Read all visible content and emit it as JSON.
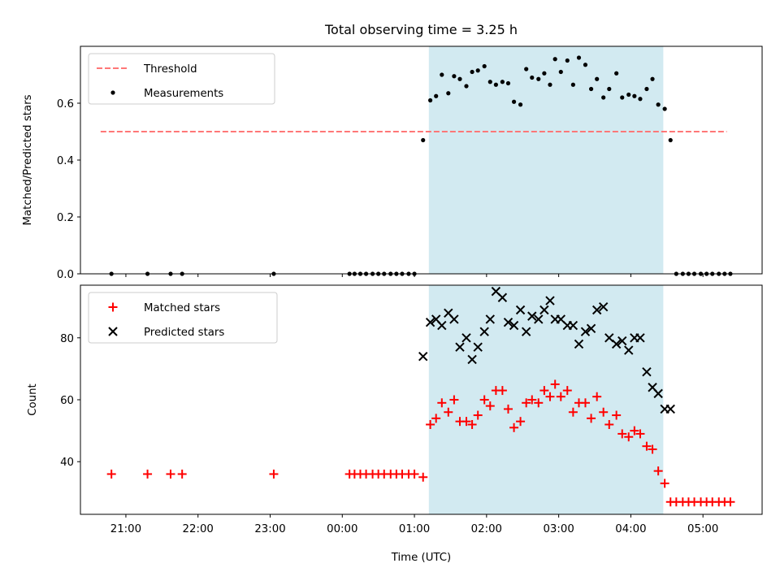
{
  "chart_data": [
    {
      "type": "scatter",
      "title": "Total observing time = 3.25 h",
      "xlabel": "",
      "ylabel": "Matched/Predicted stars",
      "ylim": [
        0,
        0.8
      ],
      "y_ticks": [
        "0.0",
        "0.2",
        "0.4",
        "0.6"
      ],
      "y_tick_values": [
        0,
        0.2,
        0.4,
        0.6
      ],
      "x_unit": "hours since 00:00 UTC (negative = previous day)",
      "xlim": [
        -3.63,
        5.82
      ],
      "shaded_interval": {
        "start": 1.2,
        "end": 4.45,
        "color": "#add8e6"
      },
      "legend": {
        "placement": "top-left",
        "entries": [
          "Threshold",
          "Measurements"
        ]
      },
      "threshold": {
        "name": "Threshold",
        "value": 0.5,
        "x_range": [
          -3.35,
          5.33
        ],
        "color": "#ff7777",
        "style": "dashed"
      },
      "series": [
        {
          "name": "Measurements",
          "color": "#000000",
          "marker": "dot",
          "points": [
            [
              -3.2,
              0
            ],
            [
              -2.7,
              0
            ],
            [
              -2.38,
              0
            ],
            [
              -2.22,
              0
            ],
            [
              -0.95,
              0
            ],
            [
              0.1,
              0
            ],
            [
              0.17,
              0
            ],
            [
              0.25,
              0
            ],
            [
              0.33,
              0
            ],
            [
              0.42,
              0
            ],
            [
              0.5,
              0
            ],
            [
              0.58,
              0
            ],
            [
              0.67,
              0
            ],
            [
              0.75,
              0
            ],
            [
              0.83,
              0
            ],
            [
              0.92,
              0
            ],
            [
              1.0,
              0
            ],
            [
              1.12,
              0.47
            ],
            [
              1.22,
              0.61
            ],
            [
              1.3,
              0.625
            ],
            [
              1.38,
              0.7
            ],
            [
              1.47,
              0.635
            ],
            [
              1.55,
              0.695
            ],
            [
              1.63,
              0.685
            ],
            [
              1.72,
              0.66
            ],
            [
              1.8,
              0.71
            ],
            [
              1.88,
              0.715
            ],
            [
              1.97,
              0.73
            ],
            [
              2.05,
              0.675
            ],
            [
              2.13,
              0.665
            ],
            [
              2.22,
              0.675
            ],
            [
              2.3,
              0.67
            ],
            [
              2.38,
              0.605
            ],
            [
              2.47,
              0.595
            ],
            [
              2.55,
              0.72
            ],
            [
              2.63,
              0.69
            ],
            [
              2.72,
              0.685
            ],
            [
              2.8,
              0.705
            ],
            [
              2.88,
              0.665
            ],
            [
              2.95,
              0.755
            ],
            [
              3.03,
              0.71
            ],
            [
              3.12,
              0.75
            ],
            [
              3.2,
              0.665
            ],
            [
              3.28,
              0.76
            ],
            [
              3.37,
              0.735
            ],
            [
              3.45,
              0.65
            ],
            [
              3.53,
              0.685
            ],
            [
              3.62,
              0.62
            ],
            [
              3.7,
              0.65
            ],
            [
              3.8,
              0.705
            ],
            [
              3.88,
              0.62
            ],
            [
              3.97,
              0.63
            ],
            [
              4.05,
              0.625
            ],
            [
              4.13,
              0.615
            ],
            [
              4.22,
              0.65
            ],
            [
              4.3,
              0.685
            ],
            [
              4.38,
              0.595
            ],
            [
              4.47,
              0.58
            ],
            [
              4.55,
              0.47
            ],
            [
              4.63,
              0
            ],
            [
              4.72,
              0
            ],
            [
              4.8,
              0
            ],
            [
              4.88,
              0
            ],
            [
              4.97,
              0
            ],
            [
              5.05,
              0
            ],
            [
              5.13,
              0
            ],
            [
              5.22,
              0
            ],
            [
              5.3,
              0
            ],
            [
              5.38,
              0
            ]
          ]
        }
      ]
    },
    {
      "type": "scatter",
      "title": "",
      "xlabel": "Time (UTC)",
      "ylabel": "Count",
      "ylim": [
        23,
        97
      ],
      "y_ticks": [
        "40",
        "60",
        "80"
      ],
      "y_tick_values": [
        40,
        60,
        80
      ],
      "x_ticks": [
        "21:00",
        "22:00",
        "23:00",
        "00:00",
        "01:00",
        "02:00",
        "03:00",
        "04:00",
        "05:00"
      ],
      "x_tick_values": [
        -3,
        -2,
        -1,
        0,
        1,
        2,
        3,
        4,
        5
      ],
      "x_unit": "hours since 00:00 UTC (negative = previous day)",
      "xlim": [
        -3.63,
        5.82
      ],
      "shaded_interval": {
        "start": 1.2,
        "end": 4.45,
        "color": "#add8e6"
      },
      "legend": {
        "placement": "top-left",
        "entries": [
          "Matched stars",
          "Predicted stars"
        ]
      },
      "series": [
        {
          "name": "Matched stars",
          "color": "#ff0000",
          "marker": "plus",
          "points": [
            [
              -3.2,
              36
            ],
            [
              -2.7,
              36
            ],
            [
              -2.38,
              36
            ],
            [
              -2.22,
              36
            ],
            [
              -0.95,
              36
            ],
            [
              0.1,
              36
            ],
            [
              0.17,
              36
            ],
            [
              0.25,
              36
            ],
            [
              0.33,
              36
            ],
            [
              0.42,
              36
            ],
            [
              0.5,
              36
            ],
            [
              0.58,
              36
            ],
            [
              0.67,
              36
            ],
            [
              0.75,
              36
            ],
            [
              0.83,
              36
            ],
            [
              0.92,
              36
            ],
            [
              1.0,
              36
            ],
            [
              1.12,
              35
            ],
            [
              1.22,
              52
            ],
            [
              1.3,
              54
            ],
            [
              1.38,
              59
            ],
            [
              1.47,
              56
            ],
            [
              1.55,
              60
            ],
            [
              1.63,
              53
            ],
            [
              1.72,
              53
            ],
            [
              1.8,
              52
            ],
            [
              1.88,
              55
            ],
            [
              1.97,
              60
            ],
            [
              2.05,
              58
            ],
            [
              2.13,
              63
            ],
            [
              2.22,
              63
            ],
            [
              2.3,
              57
            ],
            [
              2.38,
              51
            ],
            [
              2.47,
              53
            ],
            [
              2.55,
              59
            ],
            [
              2.63,
              60
            ],
            [
              2.72,
              59
            ],
            [
              2.8,
              63
            ],
            [
              2.88,
              61
            ],
            [
              2.95,
              65
            ],
            [
              3.03,
              61
            ],
            [
              3.12,
              63
            ],
            [
              3.2,
              56
            ],
            [
              3.28,
              59
            ],
            [
              3.37,
              59
            ],
            [
              3.45,
              54
            ],
            [
              3.53,
              61
            ],
            [
              3.62,
              56
            ],
            [
              3.7,
              52
            ],
            [
              3.8,
              55
            ],
            [
              3.88,
              49
            ],
            [
              3.97,
              48
            ],
            [
              4.05,
              50
            ],
            [
              4.13,
              49
            ],
            [
              4.22,
              45
            ],
            [
              4.3,
              44
            ],
            [
              4.38,
              37
            ],
            [
              4.47,
              33
            ],
            [
              4.55,
              27
            ],
            [
              4.63,
              27
            ],
            [
              4.72,
              27
            ],
            [
              4.8,
              27
            ],
            [
              4.88,
              27
            ],
            [
              4.97,
              27
            ],
            [
              5.05,
              27
            ],
            [
              5.13,
              27
            ],
            [
              5.22,
              27
            ],
            [
              5.3,
              27
            ],
            [
              5.38,
              27
            ]
          ]
        },
        {
          "name": "Predicted stars",
          "color": "#000000",
          "marker": "x",
          "points": [
            [
              1.12,
              74
            ],
            [
              1.22,
              85
            ],
            [
              1.3,
              86
            ],
            [
              1.38,
              84
            ],
            [
              1.47,
              88
            ],
            [
              1.55,
              86
            ],
            [
              1.63,
              77
            ],
            [
              1.72,
              80
            ],
            [
              1.8,
              73
            ],
            [
              1.88,
              77
            ],
            [
              1.97,
              82
            ],
            [
              2.05,
              86
            ],
            [
              2.13,
              95
            ],
            [
              2.22,
              93
            ],
            [
              2.3,
              85
            ],
            [
              2.38,
              84
            ],
            [
              2.47,
              89
            ],
            [
              2.55,
              82
            ],
            [
              2.63,
              87
            ],
            [
              2.72,
              86
            ],
            [
              2.8,
              89
            ],
            [
              2.88,
              92
            ],
            [
              2.95,
              86
            ],
            [
              3.03,
              86
            ],
            [
              3.12,
              84
            ],
            [
              3.2,
              84
            ],
            [
              3.28,
              78
            ],
            [
              3.37,
              82
            ],
            [
              3.45,
              83
            ],
            [
              3.53,
              89
            ],
            [
              3.62,
              90
            ],
            [
              3.7,
              80
            ],
            [
              3.8,
              78
            ],
            [
              3.88,
              79
            ],
            [
              3.97,
              76
            ],
            [
              4.05,
              80
            ],
            [
              4.13,
              80
            ],
            [
              4.22,
              69
            ],
            [
              4.3,
              64
            ],
            [
              4.38,
              62
            ],
            [
              4.47,
              57
            ],
            [
              4.55,
              57
            ]
          ]
        }
      ]
    }
  ]
}
